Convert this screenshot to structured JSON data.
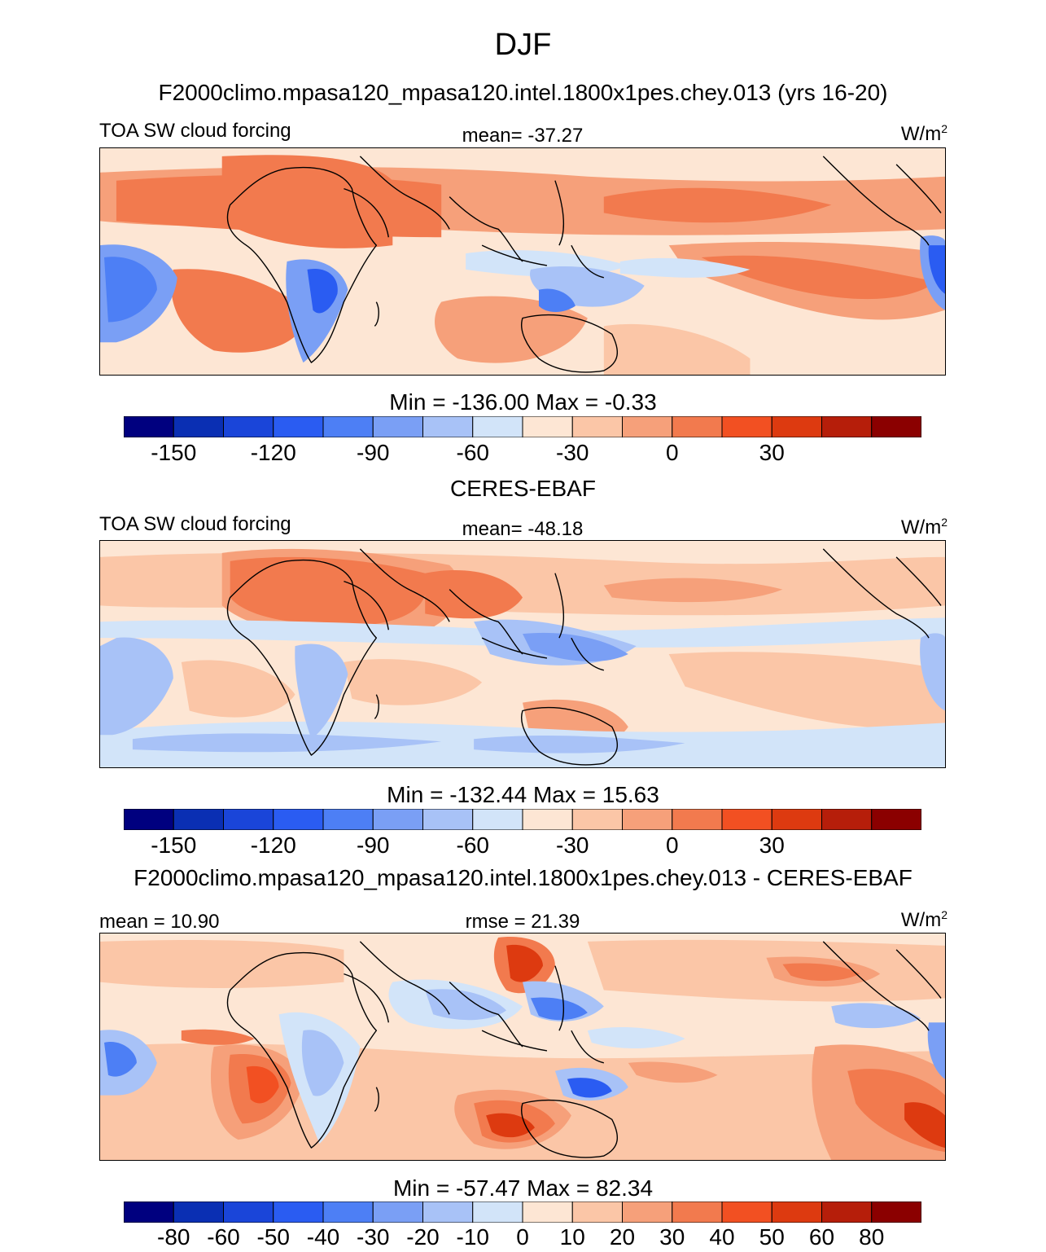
{
  "figure": {
    "title": "DJF",
    "units_base": "W/m",
    "units_exp": "2"
  },
  "palette": [
    "#00007f",
    "#0a2fb3",
    "#1a45d9",
    "#2a5cf2",
    "#4d7ff5",
    "#7a9ff5",
    "#a8c2f7",
    "#d2e4f9",
    "#fde6d4",
    "#fbc6a7",
    "#f6a07a",
    "#f27a4e",
    "#f25022",
    "#dd3a10",
    "#b61e0a",
    "#8b0000"
  ],
  "colors": {
    "coast": "#000000",
    "background": "#ffffff"
  },
  "chart_data": [
    {
      "type": "heatmap",
      "header": "F2000climo.mpasa120_mpasa120.intel.1800x1pes.chey.013 (yrs 16-20)",
      "variable": "TOA SW cloud forcing",
      "stat_text": "mean= -37.27",
      "minmax": "Min = -136.00 Max =  -0.33",
      "colorbar": {
        "levels": [
          -165,
          -150,
          -135,
          -120,
          -105,
          -90,
          -75,
          -60,
          -45,
          -30,
          -15,
          0,
          15,
          30,
          45
        ],
        "tick_labels": [
          "-150",
          "-120",
          "-90",
          "-60",
          "-30",
          "0",
          "30"
        ],
        "tick_boundaries": [
          1,
          3,
          5,
          7,
          9,
          11,
          13
        ]
      }
    },
    {
      "type": "heatmap",
      "header": "CERES-EBAF",
      "variable": "TOA SW cloud forcing",
      "stat_text": "mean= -48.18",
      "minmax": "Min = -132.44 Max =  15.63",
      "colorbar": {
        "levels": [
          -165,
          -150,
          -135,
          -120,
          -105,
          -90,
          -75,
          -60,
          -45,
          -30,
          -15,
          0,
          15,
          30,
          45
        ],
        "tick_labels": [
          "-150",
          "-120",
          "-90",
          "-60",
          "-30",
          "0",
          "30"
        ],
        "tick_boundaries": [
          1,
          3,
          5,
          7,
          9,
          11,
          13
        ]
      }
    },
    {
      "type": "heatmap",
      "header": "F2000climo.mpasa120_mpasa120.intel.1800x1pes.chey.013 - CERES-EBAF",
      "variable": "",
      "stat_left": "mean =  10.90",
      "stat_text": "rmse =  21.39",
      "minmax": "Min = -57.47 Max =  82.34",
      "colorbar": {
        "levels": [
          -80,
          -60,
          -50,
          -40,
          -30,
          -20,
          -10,
          0,
          10,
          20,
          30,
          40,
          50,
          60,
          80
        ],
        "tick_labels": [
          "-80",
          "-60",
          "-50",
          "-40",
          "-30",
          "-20",
          "-10",
          "0",
          "10",
          "20",
          "30",
          "40",
          "50",
          "60",
          "80"
        ],
        "tick_boundaries": [
          1,
          2,
          3,
          4,
          5,
          6,
          7,
          8,
          9,
          10,
          11,
          12,
          13,
          14,
          15
        ]
      }
    }
  ]
}
